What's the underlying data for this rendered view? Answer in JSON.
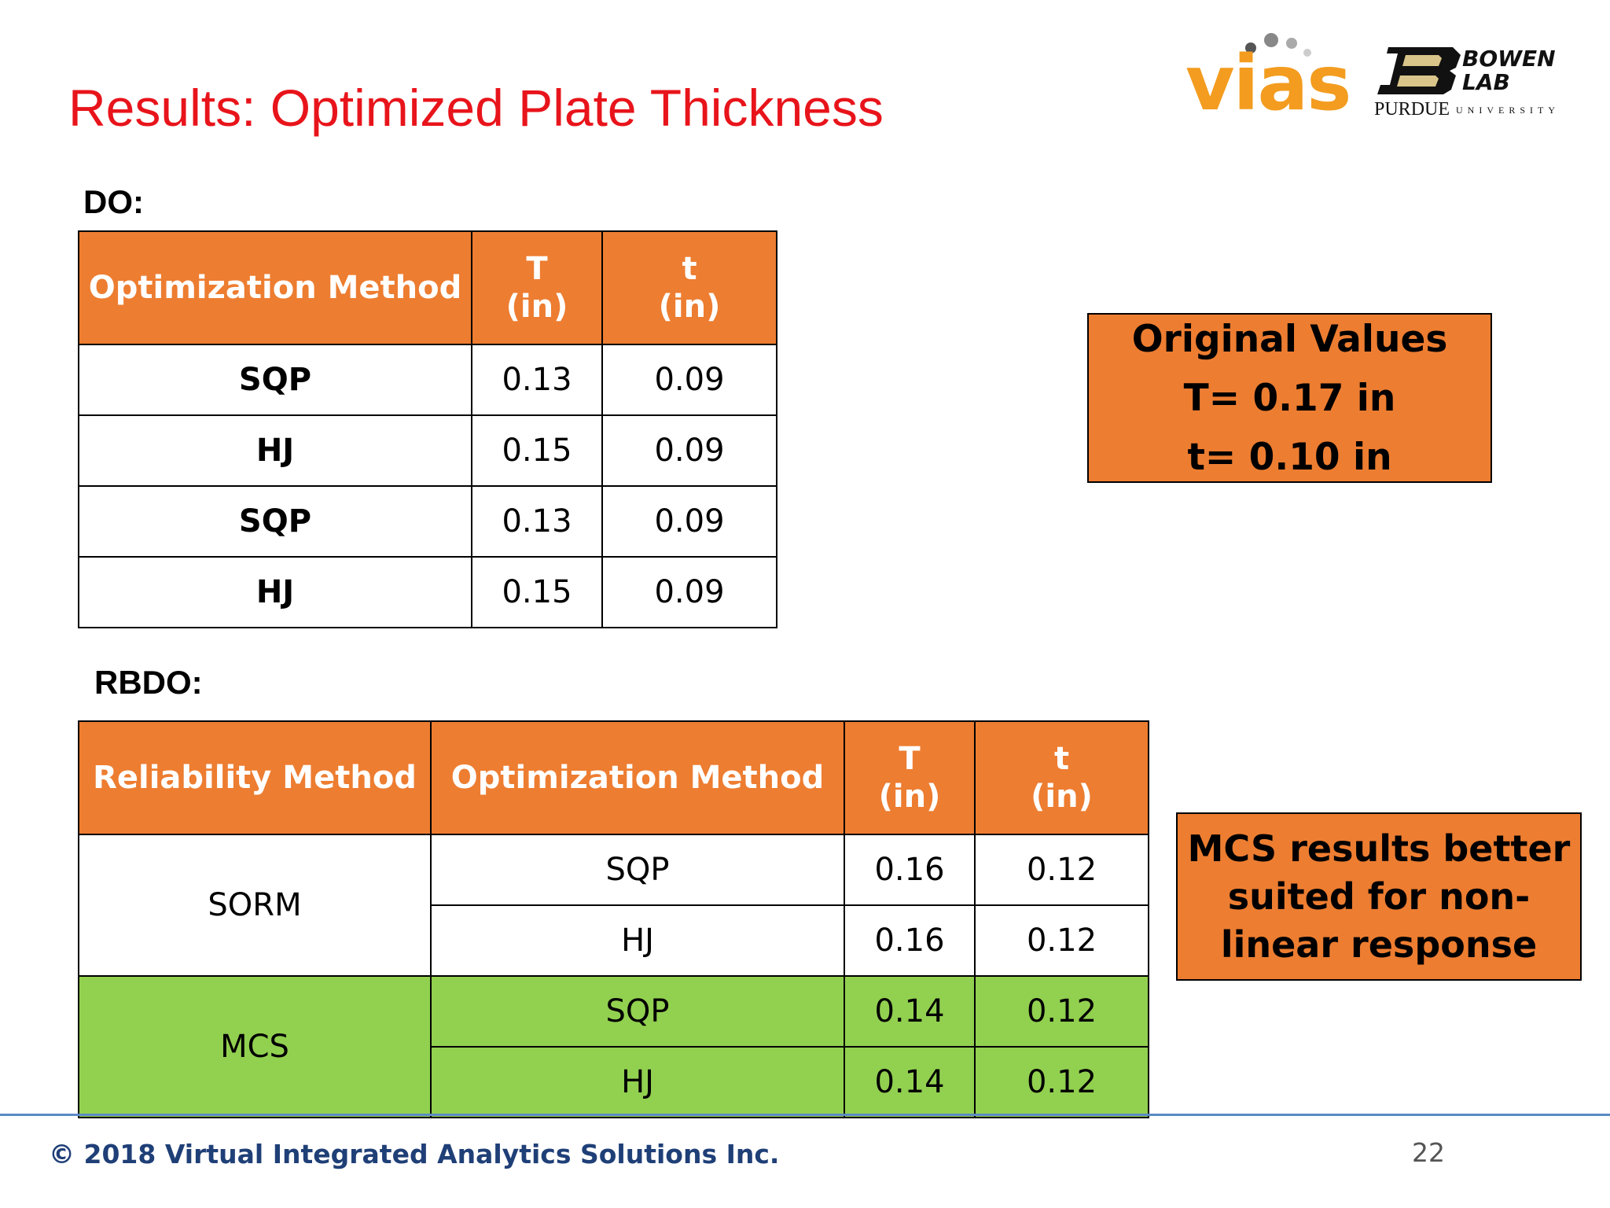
{
  "slide": {
    "title": "Results: Optimized Plate Thickness",
    "page_number": "22",
    "footer": "© 2018 Virtual Integrated Analytics Solutions Inc."
  },
  "logos": {
    "vias": "vias",
    "bowen_lab": "BOWEN\nLAB",
    "purdue": "PURDUE",
    "purdue_sub": "UNIVERSITY"
  },
  "do_section": {
    "label": "DO:",
    "headers": {
      "method": "Optimization Method",
      "T": "T",
      "T_unit": "(in)",
      "t": "t",
      "t_unit": "(in)"
    },
    "rows": [
      {
        "method": "SQP",
        "T": "0.13",
        "t": "0.09"
      },
      {
        "method": "HJ",
        "T": "0.15",
        "t": "0.09"
      },
      {
        "method": "SQP",
        "T": "0.13",
        "t": "0.09"
      },
      {
        "method": "HJ",
        "T": "0.15",
        "t": "0.09"
      }
    ]
  },
  "rbdo_section": {
    "label": "RBDO:",
    "headers": {
      "reliability": "Reliability Method",
      "method": "Optimization Method",
      "T": "T",
      "T_unit": "(in)",
      "t": "t",
      "t_unit": "(in)"
    },
    "groups": [
      {
        "reliability": "SORM",
        "rows": [
          {
            "method": "SQP",
            "T": "0.16",
            "t": "0.12"
          },
          {
            "method": "HJ",
            "T": "0.16",
            "t": "0.12"
          }
        ]
      },
      {
        "reliability": "MCS",
        "rows": [
          {
            "method": "SQP",
            "T": "0.14",
            "t": "0.12"
          },
          {
            "method": "HJ",
            "T": "0.14",
            "t": "0.12"
          }
        ]
      }
    ]
  },
  "callouts": {
    "original": {
      "title": "Original Values",
      "T_line": "T= 0.17 in",
      "t_line": "t= 0.10 in"
    },
    "mcs": {
      "line1": "MCS results better",
      "line2": "suited for non-",
      "line3": "linear response"
    }
  },
  "colors": {
    "title_red": "#e8141b",
    "header_orange": "#ed7d31",
    "highlight_green": "#92d050",
    "footer_blue": "#1f3f77",
    "vias_orange": "#f39c1f"
  }
}
